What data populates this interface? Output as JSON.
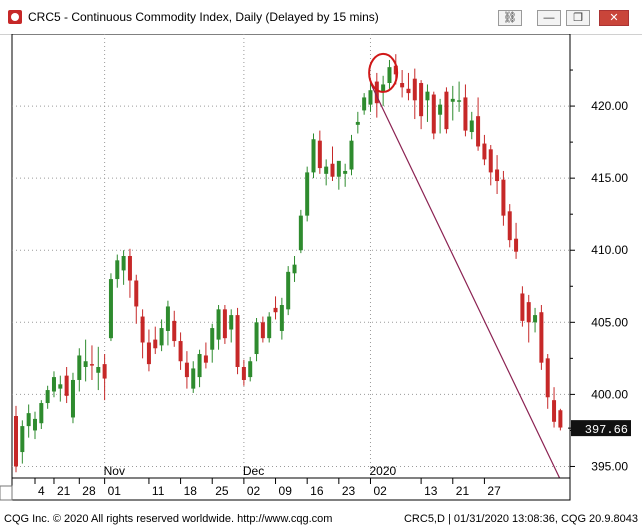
{
  "window": {
    "title": "CRC5 - Continuous Commodity Index, Daily (Delayed by 15 mins)",
    "buttons": {
      "link": "⛓",
      "minimize": "—",
      "restore": "❐",
      "close": "✕"
    }
  },
  "footer": {
    "left": "CQG Inc. © 2020 All rights reserved worldwide. http://www.cqg.com",
    "right": "CRC5,D | 01/31/2020 13:08:36, CQG 20.9.8043"
  },
  "colors": {
    "up": "#2e8b2e",
    "down": "#c62828",
    "trendline": "#8b2252",
    "circle": "#d01818"
  },
  "chart_data": {
    "type": "candlestick",
    "title": "",
    "xlabel": "",
    "ylabel": "",
    "ylim": [
      394.2,
      425
    ],
    "yticks": [
      "395.00",
      "400.00",
      "405.00",
      "410.00",
      "415.00",
      "420.00"
    ],
    "last_price": "397.66",
    "grid": true,
    "x_tick_labels": [
      "4",
      "21",
      "28",
      "01",
      "11",
      "18",
      "25",
      "02",
      "09",
      "16",
      "23",
      "02",
      "13",
      "21",
      "27"
    ],
    "x_tick_candle_index": [
      3,
      6,
      10,
      14,
      21,
      26,
      31,
      36,
      41,
      46,
      51,
      56,
      64,
      69,
      74
    ],
    "month_labels": [
      {
        "label": "Nov",
        "candle_index": 14
      },
      {
        "label": "Dec",
        "candle_index": 36
      },
      {
        "label": "2020",
        "candle_index": 56
      }
    ],
    "candles": [
      [
        398.5,
        399.2,
        394.6,
        395.0
      ],
      [
        396.0,
        398.2,
        395.2,
        397.8
      ],
      [
        397.8,
        399.3,
        397.0,
        398.7
      ],
      [
        397.5,
        398.8,
        396.9,
        398.3
      ],
      [
        398.0,
        399.6,
        397.6,
        399.4
      ],
      [
        399.4,
        400.6,
        399.0,
        400.3
      ],
      [
        400.2,
        401.6,
        399.8,
        401.2
      ],
      [
        400.4,
        401.3,
        399.5,
        400.7
      ],
      [
        401.3,
        401.9,
        399.4,
        399.9
      ],
      [
        398.4,
        401.5,
        398.0,
        401.0
      ],
      [
        401.0,
        403.2,
        400.2,
        402.7
      ],
      [
        401.9,
        403.8,
        400.9,
        402.3
      ],
      [
        402.1,
        403.4,
        401.0,
        402.0
      ],
      [
        401.5,
        403.3,
        400.3,
        401.9
      ],
      [
        402.1,
        402.8,
        399.6,
        401.1
      ],
      [
        403.9,
        408.4,
        403.7,
        408.0
      ],
      [
        408.0,
        409.7,
        407.4,
        409.3
      ],
      [
        408.6,
        410.0,
        407.6,
        409.6
      ],
      [
        409.6,
        410.1,
        406.7,
        407.9
      ],
      [
        407.9,
        408.3,
        404.9,
        406.1
      ],
      [
        405.4,
        405.9,
        402.5,
        403.6
      ],
      [
        403.6,
        404.5,
        401.6,
        402.1
      ],
      [
        403.8,
        404.7,
        402.8,
        403.2
      ],
      [
        403.4,
        405.2,
        403.0,
        404.6
      ],
      [
        404.4,
        406.5,
        403.4,
        406.1
      ],
      [
        405.1,
        405.8,
        403.3,
        403.7
      ],
      [
        403.7,
        404.3,
        401.7,
        402.3
      ],
      [
        402.2,
        403.0,
        400.4,
        401.2
      ],
      [
        400.4,
        402.3,
        400.1,
        401.8
      ],
      [
        401.2,
        403.1,
        400.5,
        402.8
      ],
      [
        402.7,
        403.6,
        401.8,
        402.2
      ],
      [
        403.1,
        404.9,
        402.2,
        404.6
      ],
      [
        403.8,
        406.2,
        403.1,
        405.9
      ],
      [
        405.9,
        406.2,
        403.5,
        403.9
      ],
      [
        404.5,
        405.9,
        403.6,
        405.5
      ],
      [
        405.5,
        406.0,
        401.4,
        401.9
      ],
      [
        401.9,
        402.4,
        400.6,
        401.0
      ],
      [
        401.2,
        402.6,
        400.9,
        402.3
      ],
      [
        402.8,
        405.3,
        402.3,
        405.0
      ],
      [
        405.0,
        405.4,
        403.6,
        403.9
      ],
      [
        403.9,
        405.7,
        403.6,
        405.4
      ],
      [
        406.0,
        406.8,
        405.2,
        405.7
      ],
      [
        404.4,
        406.7,
        403.8,
        406.2
      ],
      [
        405.9,
        408.9,
        405.5,
        408.5
      ],
      [
        408.4,
        409.6,
        407.8,
        409.0
      ],
      [
        410.0,
        412.8,
        409.8,
        412.4
      ],
      [
        412.4,
        415.8,
        412.0,
        415.4
      ],
      [
        415.4,
        418.1,
        415.0,
        417.7
      ],
      [
        417.6,
        418.3,
        415.3,
        415.7
      ],
      [
        415.3,
        416.3,
        414.5,
        415.8
      ],
      [
        416.0,
        417.2,
        414.8,
        415.1
      ],
      [
        415.1,
        416.1,
        414.2,
        416.2
      ],
      [
        415.3,
        416.0,
        414.4,
        415.5
      ],
      [
        415.6,
        418.0,
        415.2,
        417.6
      ],
      [
        418.7,
        419.6,
        418.1,
        418.9
      ],
      [
        419.7,
        420.9,
        419.4,
        420.6
      ],
      [
        420.1,
        421.7,
        419.6,
        421.1
      ],
      [
        421.7,
        422.3,
        419.2,
        420.2
      ],
      [
        421.0,
        422.1,
        420.0,
        421.5
      ],
      [
        421.6,
        423.2,
        421.2,
        422.7
      ],
      [
        422.8,
        423.6,
        421.5,
        422.2
      ],
      [
        421.6,
        422.5,
        420.6,
        421.3
      ],
      [
        421.2,
        422.3,
        420.4,
        420.9
      ],
      [
        421.9,
        422.6,
        419.1,
        420.4
      ],
      [
        421.6,
        421.8,
        418.4,
        419.3
      ],
      [
        420.4,
        421.5,
        418.9,
        421.0
      ],
      [
        420.8,
        421.0,
        417.7,
        418.1
      ],
      [
        419.4,
        420.5,
        418.1,
        420.1
      ],
      [
        421.0,
        421.3,
        418.1,
        418.4
      ],
      [
        420.3,
        421.4,
        419.0,
        420.5
      ],
      [
        420.3,
        421.7,
        419.6,
        420.4
      ],
      [
        420.6,
        421.5,
        417.9,
        418.3
      ],
      [
        418.2,
        419.6,
        417.7,
        419.0
      ],
      [
        419.3,
        420.6,
        416.9,
        417.2
      ],
      [
        417.4,
        418.0,
        415.9,
        416.3
      ],
      [
        417.0,
        417.3,
        414.5,
        415.4
      ],
      [
        415.6,
        416.6,
        413.9,
        414.8
      ],
      [
        414.9,
        415.5,
        411.7,
        412.4
      ],
      [
        412.7,
        413.2,
        410.2,
        410.7
      ],
      [
        410.8,
        411.9,
        409.4,
        409.9
      ],
      [
        407.0,
        407.5,
        404.7,
        405.1
      ],
      [
        406.4,
        406.9,
        403.6,
        405.0
      ],
      [
        405.0,
        406.0,
        404.3,
        405.5
      ],
      [
        405.7,
        406.2,
        401.7,
        402.2
      ],
      [
        402.5,
        402.8,
        399.0,
        399.8
      ],
      [
        399.6,
        400.5,
        397.7,
        398.1
      ],
      [
        398.9,
        399.0,
        397.5,
        397.7
      ]
    ],
    "trendline": {
      "from_candle": 56,
      "from_price": 421.6,
      "to_candle": 85,
      "to_price": 395.0
    },
    "highlight": {
      "candle_index": 58,
      "price": 422.3,
      "label": ""
    }
  }
}
